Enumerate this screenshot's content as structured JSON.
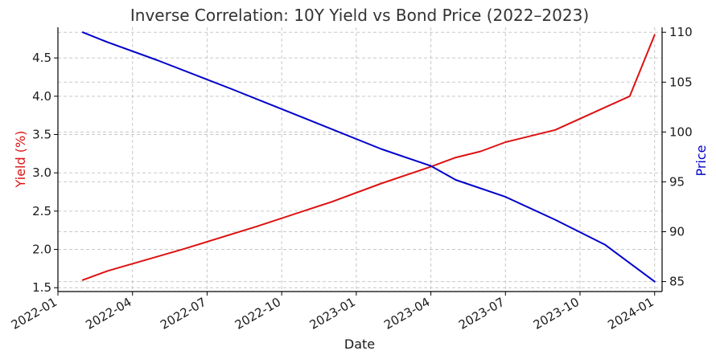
{
  "chart_data": {
    "type": "line",
    "title": "Inverse Correlation: 10Y Yield vs Bond Price (2022–2023)",
    "xlabel": "Date",
    "ylabel_left": "Yield (%)",
    "ylabel_right": "Price",
    "colors": {
      "yield": "#dd1111",
      "price": "#0000cc"
    },
    "x_ticks": [
      "2022-01",
      "2022-04",
      "2022-07",
      "2022-10",
      "2023-01",
      "2023-04",
      "2023-07",
      "2023-10",
      "2024-01"
    ],
    "y_left_ticks": [
      "1.5",
      "2.0",
      "2.5",
      "3.0",
      "3.5",
      "4.0",
      "4.5"
    ],
    "y_right_ticks": [
      "85",
      "90",
      "95",
      "100",
      "105",
      "110"
    ],
    "y_left_lim": [
      1.45,
      4.9
    ],
    "y_right_lim": [
      84,
      110.5
    ],
    "x_lim_months": [
      0,
      24.3
    ],
    "series": [
      {
        "name": "Yield (%)",
        "axis": "left",
        "points": [
          [
            1,
            1.6
          ],
          [
            2,
            1.72
          ],
          [
            5,
            2.0
          ],
          [
            8,
            2.3
          ],
          [
            11,
            2.62
          ],
          [
            13,
            2.86
          ],
          [
            15,
            3.08
          ],
          [
            16,
            3.2
          ],
          [
            17,
            3.28
          ],
          [
            18,
            3.4
          ],
          [
            20,
            3.56
          ],
          [
            23,
            4.0
          ],
          [
            24,
            4.8
          ]
        ]
      },
      {
        "name": "Price",
        "axis": "right",
        "points": [
          [
            1,
            110
          ],
          [
            2,
            109
          ],
          [
            4,
            107.2
          ],
          [
            7,
            104.3
          ],
          [
            10,
            101.3
          ],
          [
            13,
            98.3
          ],
          [
            15,
            96.6
          ],
          [
            16,
            95.2
          ],
          [
            18,
            93.5
          ],
          [
            20,
            91.2
          ],
          [
            22,
            88.7
          ],
          [
            24,
            85
          ]
        ]
      }
    ]
  }
}
